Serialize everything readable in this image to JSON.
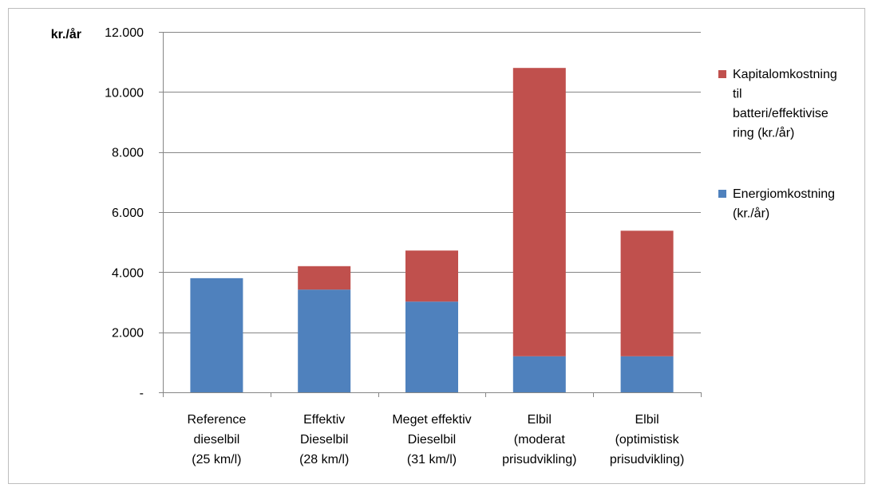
{
  "chart_data": {
    "type": "bar",
    "stacked": true,
    "ylabel": "kr./år",
    "ylim": [
      0,
      12000
    ],
    "ytick_values": [
      0,
      2000,
      4000,
      6000,
      8000,
      10000,
      12000
    ],
    "ytick_labels": [
      "-",
      "2.000",
      "4.000",
      "6.000",
      "8.000",
      "10.000",
      "12.000"
    ],
    "grid": true,
    "legend_position": "right",
    "categories": [
      [
        "Reference",
        "dieselbil",
        "(25 km/l)"
      ],
      [
        "Effektiv",
        "Dieselbil",
        "(28 km/l)"
      ],
      [
        "Meget effektiv",
        "Dieselbil",
        "(31 km/l)"
      ],
      [
        "Elbil",
        "(moderat",
        "prisudvikling)"
      ],
      [
        "Elbil",
        "(optimistisk",
        "prisudvikling)"
      ]
    ],
    "series": [
      {
        "name": "Energiomkostning (kr./år)",
        "legend_lines": [
          "Energiomkostning",
          "(kr./år)"
        ],
        "color": "#4F81BD",
        "values": [
          3800,
          3420,
          3020,
          1200,
          1200
        ]
      },
      {
        "name": "Kapitalomkostning til batteri/effektivisering (kr./år)",
        "legend_lines": [
          "Kapitalomkostning",
          "til",
          "batteri/effektivise",
          "ring (kr./år)"
        ],
        "color": "#C0504D",
        "values": [
          0,
          780,
          1700,
          9600,
          4180
        ]
      }
    ]
  }
}
